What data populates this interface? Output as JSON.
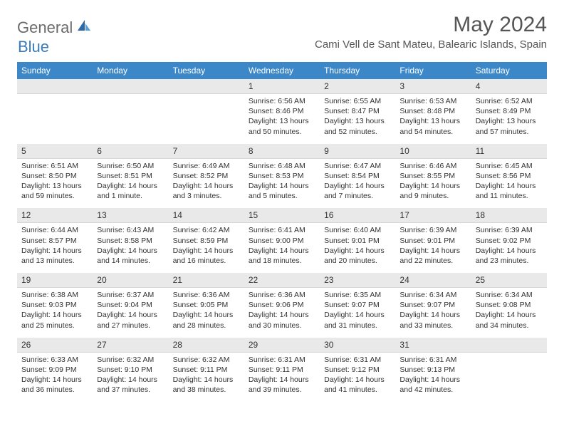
{
  "brand": {
    "part1": "General",
    "part2": "Blue"
  },
  "title": "May 2024",
  "location": "Cami Vell de Sant Mateu, Balearic Islands, Spain",
  "colors": {
    "header_bg": "#3b87c8",
    "header_text": "#ffffff",
    "daynum_bg": "#e9e9e9",
    "text": "#333333",
    "brand_gray": "#6b6b6b",
    "brand_blue": "#3b7bb8"
  },
  "dow": [
    "Sunday",
    "Monday",
    "Tuesday",
    "Wednesday",
    "Thursday",
    "Friday",
    "Saturday"
  ],
  "weeks": [
    [
      null,
      null,
      null,
      {
        "n": "1",
        "sr": "6:56 AM",
        "ss": "8:46 PM",
        "dl": "13 hours and 50 minutes."
      },
      {
        "n": "2",
        "sr": "6:55 AM",
        "ss": "8:47 PM",
        "dl": "13 hours and 52 minutes."
      },
      {
        "n": "3",
        "sr": "6:53 AM",
        "ss": "8:48 PM",
        "dl": "13 hours and 54 minutes."
      },
      {
        "n": "4",
        "sr": "6:52 AM",
        "ss": "8:49 PM",
        "dl": "13 hours and 57 minutes."
      }
    ],
    [
      {
        "n": "5",
        "sr": "6:51 AM",
        "ss": "8:50 PM",
        "dl": "13 hours and 59 minutes."
      },
      {
        "n": "6",
        "sr": "6:50 AM",
        "ss": "8:51 PM",
        "dl": "14 hours and 1 minute."
      },
      {
        "n": "7",
        "sr": "6:49 AM",
        "ss": "8:52 PM",
        "dl": "14 hours and 3 minutes."
      },
      {
        "n": "8",
        "sr": "6:48 AM",
        "ss": "8:53 PM",
        "dl": "14 hours and 5 minutes."
      },
      {
        "n": "9",
        "sr": "6:47 AM",
        "ss": "8:54 PM",
        "dl": "14 hours and 7 minutes."
      },
      {
        "n": "10",
        "sr": "6:46 AM",
        "ss": "8:55 PM",
        "dl": "14 hours and 9 minutes."
      },
      {
        "n": "11",
        "sr": "6:45 AM",
        "ss": "8:56 PM",
        "dl": "14 hours and 11 minutes."
      }
    ],
    [
      {
        "n": "12",
        "sr": "6:44 AM",
        "ss": "8:57 PM",
        "dl": "14 hours and 13 minutes."
      },
      {
        "n": "13",
        "sr": "6:43 AM",
        "ss": "8:58 PM",
        "dl": "14 hours and 14 minutes."
      },
      {
        "n": "14",
        "sr": "6:42 AM",
        "ss": "8:59 PM",
        "dl": "14 hours and 16 minutes."
      },
      {
        "n": "15",
        "sr": "6:41 AM",
        "ss": "9:00 PM",
        "dl": "14 hours and 18 minutes."
      },
      {
        "n": "16",
        "sr": "6:40 AM",
        "ss": "9:01 PM",
        "dl": "14 hours and 20 minutes."
      },
      {
        "n": "17",
        "sr": "6:39 AM",
        "ss": "9:01 PM",
        "dl": "14 hours and 22 minutes."
      },
      {
        "n": "18",
        "sr": "6:39 AM",
        "ss": "9:02 PM",
        "dl": "14 hours and 23 minutes."
      }
    ],
    [
      {
        "n": "19",
        "sr": "6:38 AM",
        "ss": "9:03 PM",
        "dl": "14 hours and 25 minutes."
      },
      {
        "n": "20",
        "sr": "6:37 AM",
        "ss": "9:04 PM",
        "dl": "14 hours and 27 minutes."
      },
      {
        "n": "21",
        "sr": "6:36 AM",
        "ss": "9:05 PM",
        "dl": "14 hours and 28 minutes."
      },
      {
        "n": "22",
        "sr": "6:36 AM",
        "ss": "9:06 PM",
        "dl": "14 hours and 30 minutes."
      },
      {
        "n": "23",
        "sr": "6:35 AM",
        "ss": "9:07 PM",
        "dl": "14 hours and 31 minutes."
      },
      {
        "n": "24",
        "sr": "6:34 AM",
        "ss": "9:07 PM",
        "dl": "14 hours and 33 minutes."
      },
      {
        "n": "25",
        "sr": "6:34 AM",
        "ss": "9:08 PM",
        "dl": "14 hours and 34 minutes."
      }
    ],
    [
      {
        "n": "26",
        "sr": "6:33 AM",
        "ss": "9:09 PM",
        "dl": "14 hours and 36 minutes."
      },
      {
        "n": "27",
        "sr": "6:32 AM",
        "ss": "9:10 PM",
        "dl": "14 hours and 37 minutes."
      },
      {
        "n": "28",
        "sr": "6:32 AM",
        "ss": "9:11 PM",
        "dl": "14 hours and 38 minutes."
      },
      {
        "n": "29",
        "sr": "6:31 AM",
        "ss": "9:11 PM",
        "dl": "14 hours and 39 minutes."
      },
      {
        "n": "30",
        "sr": "6:31 AM",
        "ss": "9:12 PM",
        "dl": "14 hours and 41 minutes."
      },
      {
        "n": "31",
        "sr": "6:31 AM",
        "ss": "9:13 PM",
        "dl": "14 hours and 42 minutes."
      },
      null
    ]
  ],
  "labels": {
    "sunrise": "Sunrise: ",
    "sunset": "Sunset: ",
    "daylight": "Daylight: "
  }
}
